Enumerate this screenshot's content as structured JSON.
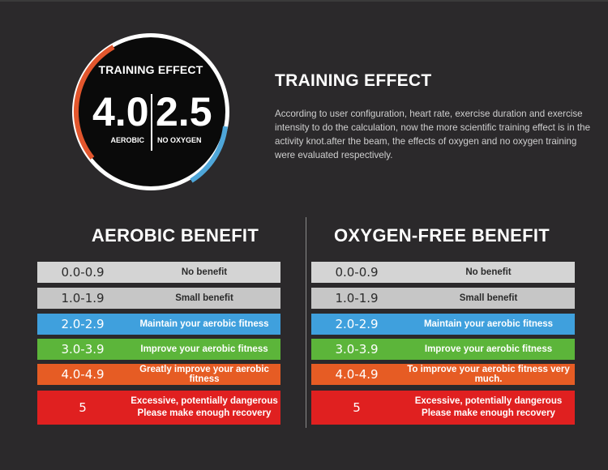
{
  "dial": {
    "title": "TRAINING EFFECT",
    "aerobic_value": "4.0",
    "aerobic_label": "AEROBIC",
    "no_oxygen_value": "2.5",
    "no_oxygen_label": "NO OXYGEN",
    "aerobic_color": "#e2562d",
    "no_oxygen_color": "#4ea6d9"
  },
  "heading": {
    "title": "TRAINING EFFECT",
    "description": "According to user configuration, heart rate, exercise duration and exercise intensity to do the calculation, now the more scientific training effect is in the activity knot.after the beam, the effects of oxygen and no oxygen training were evaluated respectively."
  },
  "columns": {
    "aerobic_title": "AEROBIC BENEFIT",
    "oxygen_free_title": "OXYGEN-FREE BENEFIT"
  },
  "aerobic_rows": [
    {
      "range": "0.0-0.9",
      "desc": "No benefit",
      "bg": "#d4d4d4",
      "fg": "#2b2b2b"
    },
    {
      "range": "1.0-1.9",
      "desc": "Small benefit",
      "bg": "#c6c6c6",
      "fg": "#2b2b2b"
    },
    {
      "range": "2.0-2.9",
      "desc": "Maintain your aerobic fitness",
      "bg": "#3fa0dd",
      "fg": "#ffffff"
    },
    {
      "range": "3.0-3.9",
      "desc": "Improve your aerobic fitness",
      "bg": "#5cb53a",
      "fg": "#ffffff"
    },
    {
      "range": "4.0-4.9",
      "desc": "Greatly improve your aerobic fitness",
      "bg": "#e65c24",
      "fg": "#ffffff"
    },
    {
      "range": "5",
      "desc_line1": "Excessive, potentially dangerous",
      "desc_line2": "Please make enough recovery",
      "bg": "#e02020",
      "fg": "#ffffff"
    }
  ],
  "oxygen_free_rows": [
    {
      "range": "0.0-0.9",
      "desc": "No benefit",
      "bg": "#d4d4d4",
      "fg": "#2b2b2b"
    },
    {
      "range": "1.0-1.9",
      "desc": "Small benefit",
      "bg": "#c6c6c6",
      "fg": "#2b2b2b"
    },
    {
      "range": "2.0-2.9",
      "desc": "Maintain your aerobic fitness",
      "bg": "#3fa0dd",
      "fg": "#ffffff"
    },
    {
      "range": "3.0-3.9",
      "desc": "Improve your aerobic fitness",
      "bg": "#5cb53a",
      "fg": "#ffffff"
    },
    {
      "range": "4.0-4.9",
      "desc": "To improve your aerobic fitness very much.",
      "bg": "#e65c24",
      "fg": "#ffffff"
    },
    {
      "range": "5",
      "desc_line1": "Excessive, potentially dangerous",
      "desc_line2": "Please make enough recovery",
      "bg": "#e02020",
      "fg": "#ffffff"
    }
  ]
}
